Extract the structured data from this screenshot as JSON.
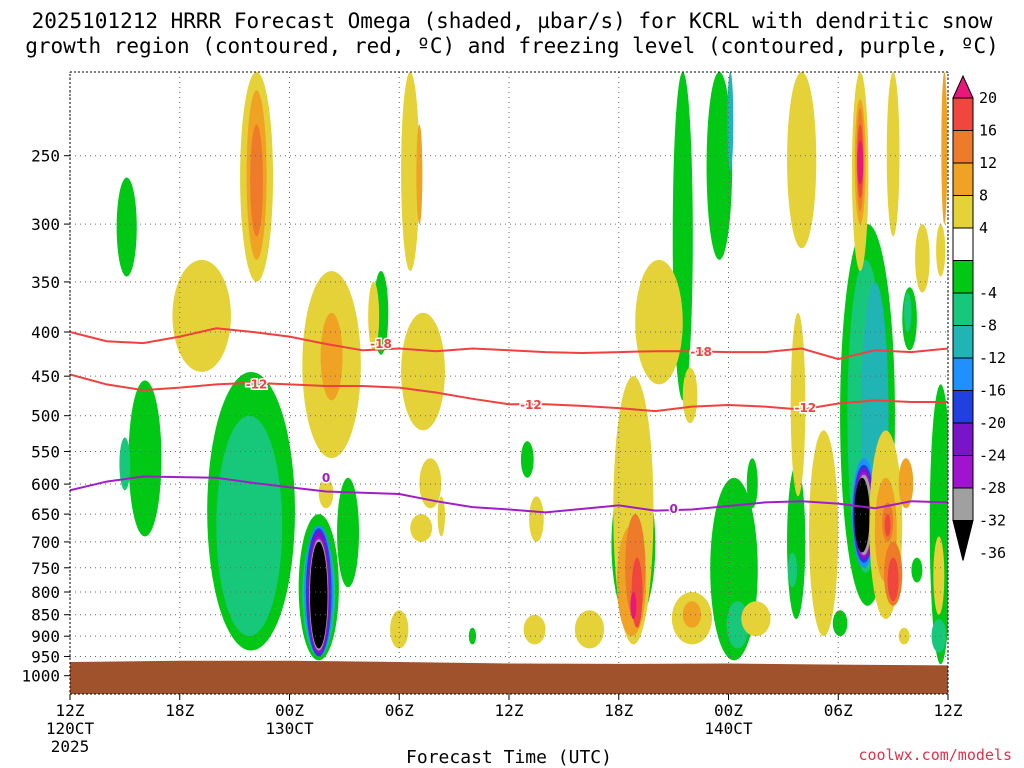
{
  "chart_data": {
    "type": "heatmap",
    "title_line1": "2025101212 HRRR Forecast Omega (shaded, µbar/s) for KCRL with dendritic snow",
    "title_line2": "growth region (contoured, red, ºC) and freezing level (contoured, purple, ºC)",
    "xlabel": "Forecast Time (UTC)",
    "ylabel": "",
    "credit": "coolwx.com/models",
    "x_ticks": [
      {
        "hour": 0,
        "label": "12Z",
        "sub1": "120CT",
        "sub2": "2025"
      },
      {
        "hour": 6,
        "label": "18Z",
        "sub1": "",
        "sub2": ""
      },
      {
        "hour": 12,
        "label": "00Z",
        "sub1": "130CT",
        "sub2": ""
      },
      {
        "hour": 18,
        "label": "06Z",
        "sub1": "",
        "sub2": ""
      },
      {
        "hour": 24,
        "label": "12Z",
        "sub1": "",
        "sub2": ""
      },
      {
        "hour": 30,
        "label": "18Z",
        "sub1": "",
        "sub2": ""
      },
      {
        "hour": 36,
        "label": "00Z",
        "sub1": "140CT",
        "sub2": ""
      },
      {
        "hour": 42,
        "label": "06Z",
        "sub1": "",
        "sub2": ""
      },
      {
        "hour": 48,
        "label": "12Z",
        "sub1": "",
        "sub2": ""
      }
    ],
    "xlim_hours": [
      0,
      48
    ],
    "y_ticks": [
      250,
      300,
      350,
      400,
      450,
      500,
      550,
      600,
      650,
      700,
      750,
      800,
      850,
      900,
      950,
      1000
    ],
    "ylim_hpa": [
      200,
      1050
    ],
    "colorbar": {
      "tick_labels": [
        "20",
        "16",
        "12",
        "8",
        "4",
        "-4",
        "-8",
        "-12",
        "-16",
        "-20",
        "-24",
        "-28",
        "-32",
        "-36"
      ],
      "bins": [
        {
          "range": ">20",
          "color": "#e8187a"
        },
        {
          "range": "16 to 20",
          "color": "#f0463e"
        },
        {
          "range": "12 to 16",
          "color": "#ee7b2a"
        },
        {
          "range": "8 to 12",
          "color": "#f0a224"
        },
        {
          "range": "4 to 8",
          "color": "#e4d238"
        },
        {
          "range": "-4 to 4",
          "color": "#ffffff"
        },
        {
          "range": "-8 to -4",
          "color": "#00c814"
        },
        {
          "range": "-12 to -8",
          "color": "#18c87a"
        },
        {
          "range": "-16 to -12",
          "color": "#20b4b4"
        },
        {
          "range": "-20 to -16",
          "color": "#1e90ff"
        },
        {
          "range": "-24 to -20",
          "color": "#2040e0"
        },
        {
          "range": "-28 to -24",
          "color": "#7a14c8"
        },
        {
          "range": "-32 to -28",
          "color": "#a014d0"
        },
        {
          "range": "-36 to -32",
          "color": "#a0a0a0"
        },
        {
          "range": "<-36",
          "color": "#000000"
        }
      ]
    },
    "contours": [
      {
        "name": "-18C isotherm",
        "label": "-18",
        "color": "#f04040",
        "hours": [
          0,
          2,
          4,
          6,
          8,
          10,
          12,
          14,
          16,
          18,
          20,
          22,
          24,
          26,
          28,
          30,
          32,
          34,
          36,
          38,
          40,
          42,
          44,
          46,
          48
        ],
        "hpa": [
          400,
          410,
          412,
          405,
          396,
          400,
          405,
          413,
          420,
          418,
          421,
          418,
          420,
          422,
          423,
          422,
          421,
          421,
          422,
          422,
          418,
          430,
          420,
          422,
          418
        ]
      },
      {
        "name": "-12C isotherm",
        "label": "-12",
        "color": "#f04040",
        "hours": [
          0,
          2,
          4,
          6,
          8,
          10,
          12,
          14,
          16,
          18,
          20,
          22,
          24,
          26,
          28,
          30,
          32,
          34,
          36,
          38,
          40,
          42,
          44,
          46,
          48
        ],
        "hpa": [
          448,
          460,
          467,
          464,
          460,
          458,
          460,
          462,
          462,
          464,
          470,
          478,
          485,
          485,
          487,
          490,
          494,
          488,
          486,
          488,
          492,
          484,
          480,
          482,
          482
        ]
      },
      {
        "name": "0C freezing level",
        "label": "0",
        "color": "#a01ec8",
        "hours": [
          0,
          2,
          4,
          6,
          8,
          10,
          12,
          14,
          16,
          18,
          20,
          22,
          24,
          26,
          28,
          30,
          32,
          34,
          36,
          38,
          40,
          42,
          44,
          46,
          48
        ],
        "hpa": [
          610,
          596,
          588,
          589,
          590,
          598,
          605,
          612,
          614,
          616,
          628,
          638,
          642,
          647,
          641,
          635,
          644,
          642,
          636,
          630,
          628,
          632,
          640,
          628,
          630
        ]
      }
    ],
    "contour_labels": [
      {
        "text": "-18",
        "hour": 17.0,
        "hpa": 413,
        "color": "#f04040"
      },
      {
        "text": "-18",
        "hour": 34.5,
        "hpa": 422,
        "color": "#f04040"
      },
      {
        "text": "-12",
        "hour": 10.2,
        "hpa": 460,
        "color": "#f04040"
      },
      {
        "text": "-12",
        "hour": 25.2,
        "hpa": 486,
        "color": "#f04040"
      },
      {
        "text": "-12",
        "hour": 40.2,
        "hpa": 490,
        "color": "#f04040"
      },
      {
        "text": "0",
        "hour": 14.0,
        "hpa": 590,
        "color": "#a01ec8"
      },
      {
        "text": "0",
        "hour": 33.0,
        "hpa": 641,
        "color": "#a01ec8"
      }
    ],
    "omega_features": [
      {
        "desc": "strong ascent core",
        "hour_center": 13.6,
        "hpa_range": [
          670,
          950
        ],
        "min_value": -36
      },
      {
        "desc": "strong ascent core",
        "hour_center": 43.3,
        "hpa_range": [
          575,
          720
        ],
        "min_value": -36
      },
      {
        "desc": "descent maximum",
        "hour_center": 43.2,
        "hpa_range": [
          220,
          300
        ],
        "max_value": 20
      },
      {
        "desc": "descent maximum",
        "hour_center": 30.8,
        "hpa_range": [
          730,
          880
        ],
        "max_value": 20
      },
      {
        "desc": "descent maximum",
        "hour_center": 45.0,
        "hpa_range": [
          740,
          820
        ],
        "max_value": 20
      }
    ],
    "terrain_surface_hpa": 965
  }
}
